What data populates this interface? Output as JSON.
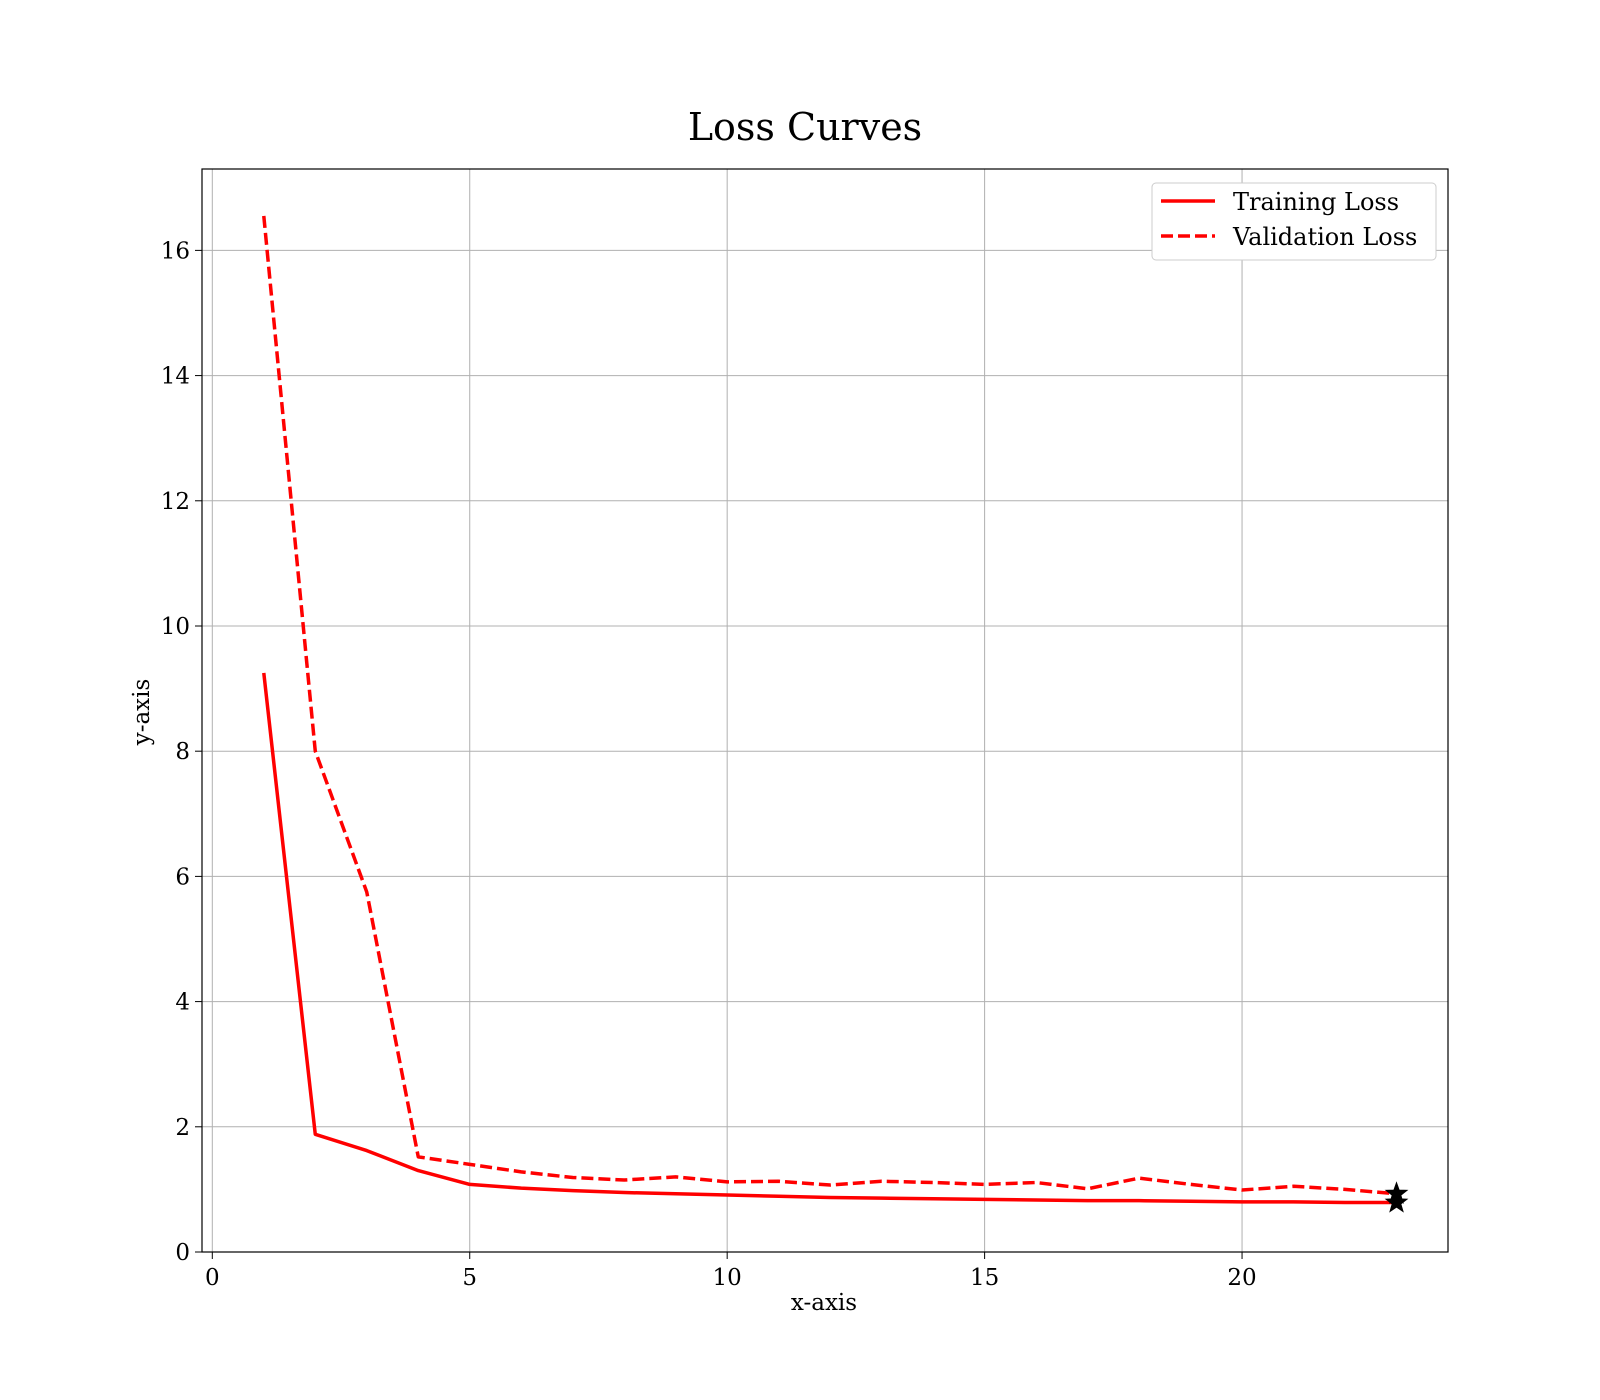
{
  "chart_data": {
    "type": "line",
    "title": "Loss Curves",
    "xlabel": "x-axis",
    "ylabel": "y-axis",
    "xlim": [
      -0.2,
      24.0
    ],
    "ylim": [
      0,
      17.3
    ],
    "xticks": [
      0,
      5,
      10,
      15,
      20
    ],
    "yticks": [
      0,
      2,
      4,
      6,
      8,
      10,
      12,
      14,
      16
    ],
    "grid": true,
    "legend_position": "top-right",
    "x": [
      1,
      2,
      3,
      4,
      5,
      6,
      7,
      8,
      9,
      10,
      11,
      12,
      13,
      14,
      15,
      16,
      17,
      18,
      19,
      20,
      21,
      22,
      23
    ],
    "series": [
      {
        "name": "Training Loss",
        "color": "#ff0000",
        "linestyle": "solid",
        "values": [
          9.25,
          1.88,
          1.62,
          1.3,
          1.08,
          1.02,
          0.98,
          0.95,
          0.93,
          0.91,
          0.89,
          0.87,
          0.86,
          0.85,
          0.84,
          0.83,
          0.82,
          0.82,
          0.81,
          0.8,
          0.8,
          0.79,
          0.79
        ],
        "marker_last": "star"
      },
      {
        "name": "Validation Loss",
        "color": "#ff0000",
        "linestyle": "dashed",
        "values": [
          16.55,
          8.0,
          5.75,
          1.52,
          1.4,
          1.28,
          1.19,
          1.15,
          1.2,
          1.12,
          1.13,
          1.07,
          1.13,
          1.11,
          1.08,
          1.11,
          1.01,
          1.18,
          1.08,
          0.99,
          1.05,
          1.0,
          0.93
        ],
        "marker_last": "star"
      }
    ]
  }
}
